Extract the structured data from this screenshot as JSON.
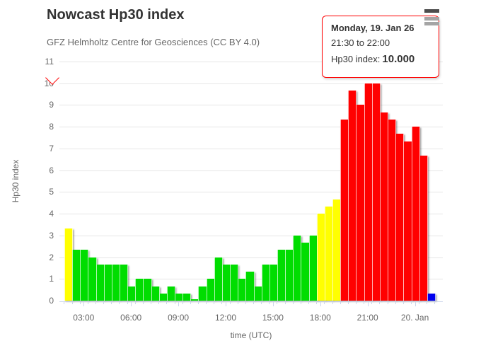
{
  "header": {
    "title": "Nowcast Hp30 index",
    "subtitle": "GFZ Helmholtz Centre for Geosciences (CC BY 4.0)"
  },
  "tooltip": {
    "date": "Monday, 19. Jan 26",
    "time_range": "21:30 to 22:00",
    "label": "Hp30 index:",
    "value": "10.000",
    "border_color": "#ff0000"
  },
  "chart_data": {
    "type": "bar",
    "title": "Nowcast Hp30 index",
    "subtitle": "GFZ Helmholtz Centre for Geosciences (CC BY 4.0)",
    "xlabel": "time (UTC)",
    "ylabel": "Hp30 index",
    "ylim": [
      0,
      11
    ],
    "grid": true,
    "legend_position": "none",
    "y_ticks": [
      0,
      1,
      2,
      3,
      4,
      5,
      6,
      7,
      8,
      9,
      10,
      11
    ],
    "x_tick_labels": [
      "03:00",
      "06:00",
      "09:00",
      "12:00",
      "15:00",
      "18:00",
      "21:00",
      "20. Jan"
    ],
    "x_tick_bar_indices": [
      2,
      8,
      14,
      20,
      26,
      32,
      38,
      44
    ],
    "interval_minutes": 30,
    "x": [
      "02:00",
      "02:30",
      "03:00",
      "03:30",
      "04:00",
      "04:30",
      "05:00",
      "05:30",
      "06:00",
      "06:30",
      "07:00",
      "07:30",
      "08:00",
      "08:30",
      "09:00",
      "09:30",
      "10:00",
      "10:30",
      "11:00",
      "11:30",
      "12:00",
      "12:30",
      "13:00",
      "13:30",
      "14:00",
      "14:30",
      "15:00",
      "15:30",
      "16:00",
      "16:30",
      "17:00",
      "17:30",
      "18:00",
      "18:30",
      "19:00",
      "19:30",
      "20:00",
      "20:30",
      "21:00",
      "21:30",
      "22:00",
      "22:30",
      "23:00",
      "23:30",
      "00:00",
      "00:30",
      "01:00"
    ],
    "values": [
      3.333,
      2.333,
      2.333,
      2.0,
      1.667,
      1.667,
      1.667,
      1.667,
      0.667,
      1.0,
      1.0,
      0.667,
      0.333,
      0.667,
      0.333,
      0.333,
      0.0,
      0.667,
      1.0,
      2.0,
      1.667,
      1.667,
      1.0,
      1.333,
      0.667,
      1.667,
      1.667,
      2.333,
      2.333,
      3.0,
      2.667,
      3.0,
      4.0,
      4.333,
      4.667,
      8.333,
      9.667,
      9.0,
      10.0,
      10.0,
      8.667,
      8.333,
      7.667,
      7.333,
      8.0,
      6.667,
      0.333
    ],
    "point_colors": [
      "yellow",
      "green",
      "green",
      "green",
      "green",
      "green",
      "green",
      "green",
      "green",
      "green",
      "green",
      "green",
      "green",
      "green",
      "green",
      "green",
      "green",
      "green",
      "green",
      "green",
      "green",
      "green",
      "green",
      "green",
      "green",
      "green",
      "green",
      "green",
      "green",
      "green",
      "green",
      "green",
      "yellow",
      "yellow",
      "yellow",
      "red",
      "red",
      "red",
      "red",
      "red",
      "red",
      "red",
      "red",
      "red",
      "red",
      "red",
      "blue"
    ],
    "palette": {
      "green": "#00dd00",
      "yellow": "#ffff00",
      "red": "#ff0000",
      "blue": "#0000ee"
    },
    "highlighted_bar_index": 39,
    "axis_color": "#ccd6eb",
    "grid_color": "#e6e6e6"
  }
}
